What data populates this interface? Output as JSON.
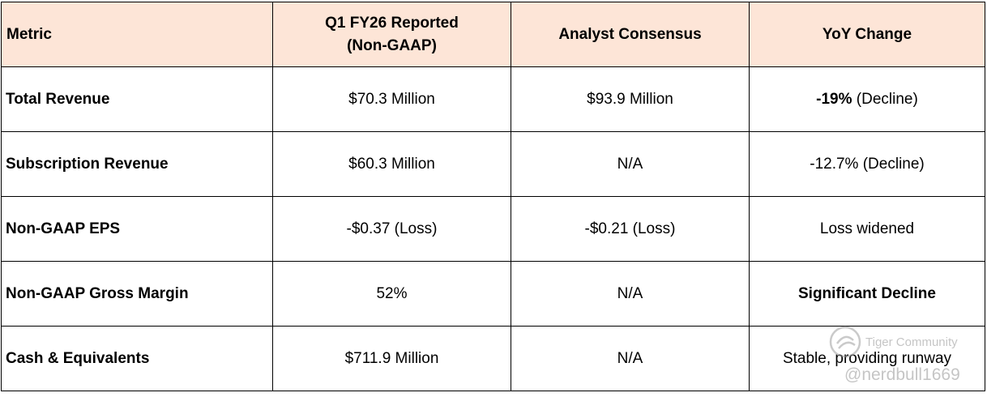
{
  "table": {
    "headers": {
      "metric": "Metric",
      "reported_line1": "Q1 FY26 Reported",
      "reported_line2": "(Non-GAAP)",
      "consensus": "Analyst Consensus",
      "yoy": "YoY Change"
    },
    "rows": [
      {
        "metric": "Total Revenue",
        "reported": "$70.3 Million",
        "consensus": "$93.9 Million",
        "yoy_bold": "-19%",
        "yoy_rest": " (Decline)"
      },
      {
        "metric": "Subscription Revenue",
        "reported": "$60.3 Million",
        "consensus": "N/A",
        "yoy_bold": "",
        "yoy_rest": "-12.7% (Decline)"
      },
      {
        "metric": "Non-GAAP EPS",
        "reported": "-$0.37 (Loss)",
        "consensus": "-$0.21 (Loss)",
        "yoy_bold": "",
        "yoy_rest": "Loss widened"
      },
      {
        "metric": "Non-GAAP Gross Margin",
        "reported": "52%",
        "consensus": "N/A",
        "yoy_bold": "Significant Decline",
        "yoy_rest": ""
      },
      {
        "metric": "Cash & Equivalents",
        "reported": "$711.9 Million",
        "consensus": "N/A",
        "yoy_bold": "",
        "yoy_rest": "Stable, providing runway"
      }
    ]
  },
  "watermark": {
    "community": "Tiger Community",
    "handle": "@nerdbull1669"
  }
}
